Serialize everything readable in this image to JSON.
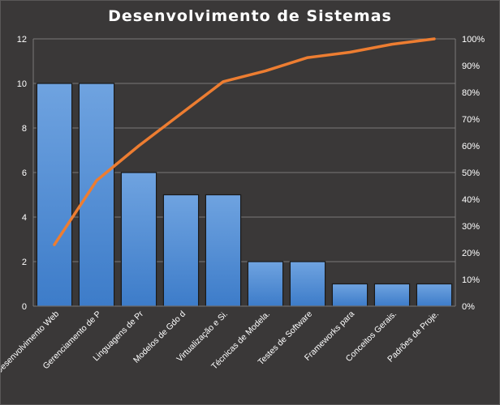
{
  "chart_data": {
    "type": "bar",
    "title": "Desenvolvimento  de Sistemas",
    "categories": [
      "Desenvolvimento Web",
      "Gerenciamento de P",
      "Linguagens de Pr",
      "Modelos de Gdo d",
      "Virtualização e Si.",
      "Técnicas de Modela.",
      "Testes de Software",
      "Frameworks para",
      "Conceitos Gerais.",
      "Padrões de Proje."
    ],
    "series": [
      {
        "type": "bar",
        "values": [
          10,
          10,
          6,
          5,
          5,
          2,
          2,
          1,
          1,
          1
        ]
      },
      {
        "type": "line",
        "axis": "secondary",
        "values": [
          0.23,
          0.47,
          0.6,
          0.72,
          0.84,
          0.88,
          0.93,
          0.95,
          0.98,
          1.0
        ]
      }
    ],
    "ylim": [
      0,
      12
    ],
    "y_ticks": [
      "0",
      "2",
      "4",
      "6",
      "8",
      "10",
      "12"
    ],
    "y2lim": [
      0,
      1
    ],
    "y2_ticks": [
      "0%",
      "10%",
      "20%",
      "30%",
      "40%",
      "50%",
      "60%",
      "70%",
      "80%",
      "90%",
      "100%"
    ],
    "grid": true,
    "colors": {
      "background": "#3a3838",
      "bar_top": "#6fa3e0",
      "bar_bottom": "#3d7cc9",
      "bar_border": "#1a1a1a",
      "line": "#ed7d31",
      "grid": "#7a7878",
      "text": "#ffffff"
    }
  }
}
